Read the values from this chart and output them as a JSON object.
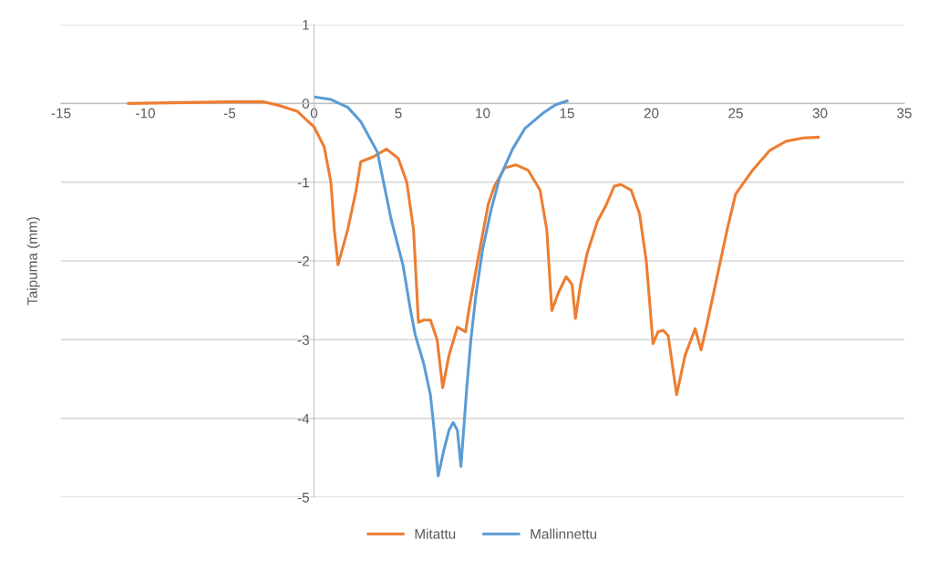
{
  "chart_data": {
    "type": "line",
    "ylabel": "Taipuma (mm)",
    "xlim": [
      -15,
      35
    ],
    "xticks": [
      -15,
      -10,
      -5,
      0,
      5,
      10,
      15,
      20,
      25,
      30,
      35
    ],
    "ylim": [
      -5,
      1
    ],
    "yticks": [
      -5,
      -4,
      -3,
      -2,
      -1,
      0,
      1
    ],
    "grid": "y",
    "legend": "bottom",
    "marker": "none",
    "line_style": "solid",
    "series": [
      {
        "name": "Mitattu",
        "color": "#ed7d31",
        "x": [
          -11,
          -5,
          -3,
          -2,
          -1,
          0,
          0.6,
          1.0,
          1.2,
          1.42,
          2.0,
          2.5,
          2.77,
          3.5,
          4.3,
          5.0,
          5.5,
          5.9,
          6.19,
          6.5,
          6.9,
          7.3,
          7.63,
          8.0,
          8.5,
          8.98,
          9.2,
          9.7,
          10.33,
          10.7,
          11.3,
          11.96,
          12.7,
          13.4,
          13.8,
          14.1,
          14.5,
          14.95,
          15.3,
          15.5,
          15.8,
          16.2,
          16.8,
          17.3,
          17.8,
          18.2,
          18.8,
          19.3,
          19.7,
          20.1,
          20.4,
          20.7,
          21.0,
          21.5,
          22.0,
          22.6,
          22.95,
          23.3,
          24.0,
          24.5,
          25.0,
          26.0,
          27.0,
          28.0,
          29.0,
          29.9
        ],
        "values": [
          0,
          0.02,
          0.02,
          -0.03,
          -0.1,
          -0.3,
          -0.55,
          -1.0,
          -1.6,
          -2.05,
          -1.6,
          -1.1,
          -0.74,
          -0.68,
          -0.58,
          -0.7,
          -1.0,
          -1.6,
          -2.78,
          -2.75,
          -2.75,
          -3.0,
          -3.61,
          -3.2,
          -2.84,
          -2.9,
          -2.6,
          -2.0,
          -1.28,
          -1.05,
          -0.82,
          -0.78,
          -0.85,
          -1.1,
          -1.6,
          -2.63,
          -2.4,
          -2.2,
          -2.3,
          -2.73,
          -2.3,
          -1.9,
          -1.5,
          -1.3,
          -1.05,
          -1.03,
          -1.1,
          -1.4,
          -2.0,
          -3.05,
          -2.9,
          -2.88,
          -2.95,
          -3.7,
          -3.2,
          -2.86,
          -3.13,
          -2.8,
          -2.1,
          -1.6,
          -1.15,
          -0.85,
          -0.6,
          -0.48,
          -0.44,
          -0.43
        ]
      },
      {
        "name": "Mallinnettu",
        "color": "#5b9bd5",
        "x": [
          0.1,
          1,
          2,
          2.77,
          3.76,
          4.57,
          5.27,
          5.7,
          6.0,
          6.5,
          6.9,
          7.1,
          7.36,
          7.7,
          8.0,
          8.25,
          8.5,
          8.71,
          9.06,
          9.3,
          9.6,
          10.0,
          10.5,
          11.0,
          11.77,
          12.5,
          13.6,
          14.3,
          15.0
        ],
        "values": [
          0.08,
          0.05,
          -0.05,
          -0.23,
          -0.62,
          -1.47,
          -2.05,
          -2.6,
          -2.94,
          -3.3,
          -3.7,
          -4.1,
          -4.73,
          -4.4,
          -4.15,
          -4.05,
          -4.15,
          -4.61,
          -3.6,
          -3.0,
          -2.43,
          -1.85,
          -1.35,
          -0.95,
          -0.58,
          -0.32,
          -0.12,
          -0.02,
          0.03
        ]
      }
    ]
  }
}
